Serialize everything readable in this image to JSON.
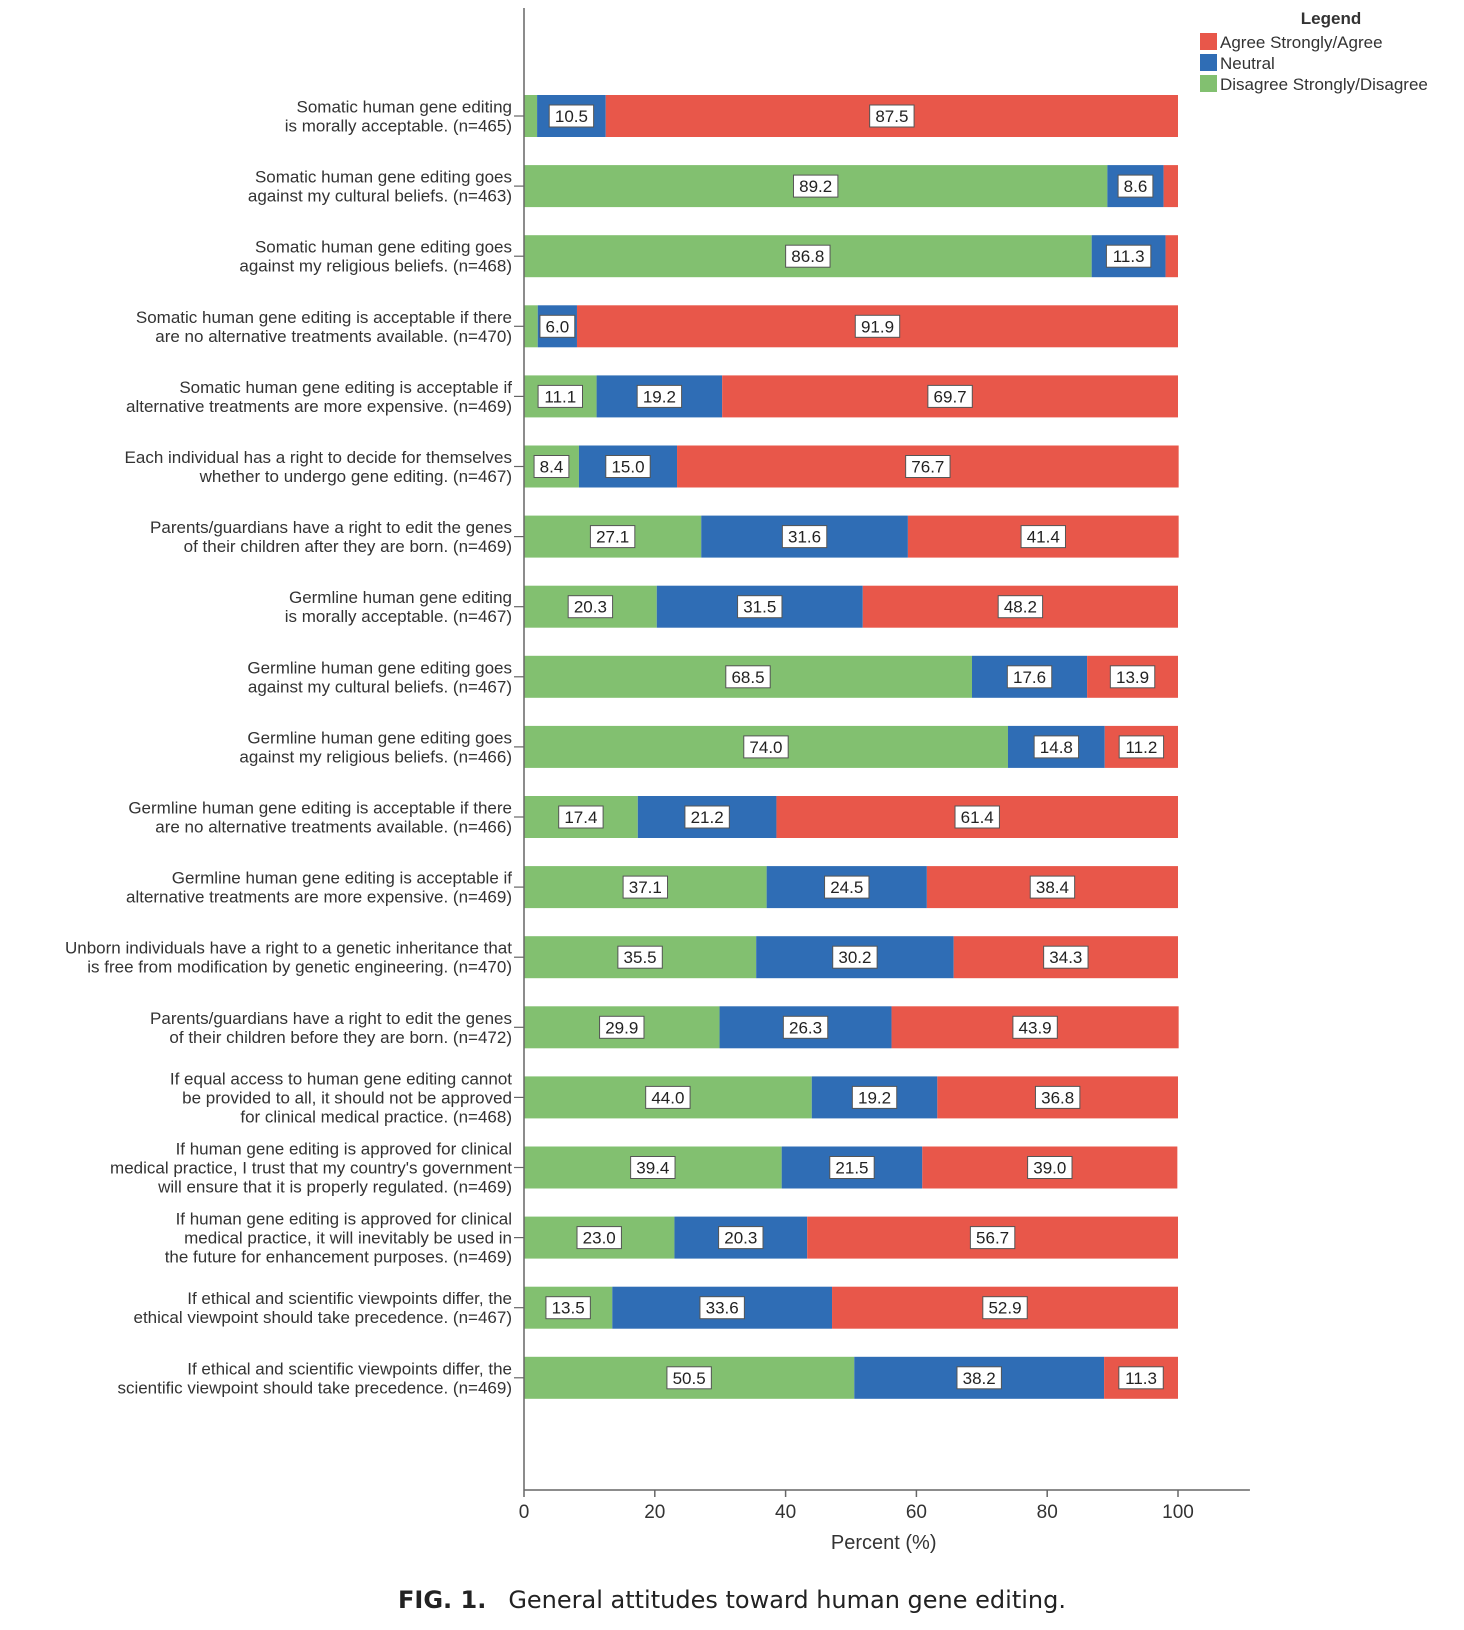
{
  "chart_data": {
    "type": "bar",
    "orientation": "horizontal",
    "stacked": true,
    "categories": [
      [
        "Somatic human gene editing",
        "is morally acceptable. (n=465)"
      ],
      [
        "Somatic human gene editing goes",
        "against my cultural beliefs. (n=463)"
      ],
      [
        "Somatic human gene editing goes",
        "against my religious beliefs. (n=468)"
      ],
      [
        "Somatic human gene editing is acceptable if there",
        "are no alternative treatments available. (n=470)"
      ],
      [
        "Somatic human gene editing is acceptable if",
        "alternative treatments are more expensive. (n=469)"
      ],
      [
        "Each individual has a right to decide for themselves",
        "whether to undergo gene editing. (n=467)"
      ],
      [
        "Parents/guardians have a right to edit the genes",
        "of their children after they are born. (n=469)"
      ],
      [
        "Germline human gene editing",
        "is morally acceptable. (n=467)"
      ],
      [
        "Germline human gene editing goes",
        "against my cultural beliefs. (n=467)"
      ],
      [
        "Germline human gene editing goes",
        "against my religious beliefs. (n=466)"
      ],
      [
        "Germline human gene editing is acceptable if there",
        "are no alternative treatments available. (n=466)"
      ],
      [
        "Germline human gene editing is acceptable if",
        "alternative treatments are more expensive. (n=469)"
      ],
      [
        "Unborn individuals have a right to a genetic inheritance that",
        "is free from modification by genetic engineering. (n=470)"
      ],
      [
        "Parents/guardians have a right to edit the genes",
        "of their children before they are born. (n=472)"
      ],
      [
        "If equal access to human gene editing cannot",
        "be provided to all, it should not be approved",
        "for clinical medical practice. (n=468)"
      ],
      [
        "If human gene editing is approved for clinical",
        "medical practice, I trust that my country's government",
        "will ensure that it is properly regulated. (n=469)"
      ],
      [
        "If human gene editing is approved for clinical",
        "medical practice, it will inevitably be used in",
        "the future for enhancement purposes. (n=469)"
      ],
      [
        "If ethical and scientific viewpoints differ, the",
        "ethical viewpoint should take precedence. (n=467)"
      ],
      [
        "If ethical and scientific viewpoints differ, the",
        "scientific viewpoint should take precedence. (n=469)"
      ]
    ],
    "series": [
      {
        "name": "Disagree Strongly/Disagree",
        "color": "#82c070",
        "values": [
          2.0,
          89.2,
          86.8,
          2.1,
          11.1,
          8.4,
          27.1,
          20.3,
          68.5,
          74.0,
          17.4,
          37.1,
          35.5,
          29.9,
          44.0,
          39.4,
          23.0,
          13.5,
          50.5
        ],
        "labels": [
          "",
          "89.2",
          "86.8",
          "",
          "11.1",
          "8.4",
          "27.1",
          "20.3",
          "68.5",
          "74.0",
          "17.4",
          "37.1",
          "35.5",
          "29.9",
          "44.0",
          "39.4",
          "23.0",
          "13.5",
          "50.5"
        ]
      },
      {
        "name": "Neutral",
        "color": "#2f6db5",
        "values": [
          10.5,
          8.6,
          11.3,
          6.0,
          19.2,
          15.0,
          31.6,
          31.5,
          17.6,
          14.8,
          21.2,
          24.5,
          30.2,
          26.3,
          19.2,
          21.5,
          20.3,
          33.6,
          38.2
        ],
        "labels": [
          "10.5",
          "8.6",
          "11.3",
          "6.0",
          "19.2",
          "15.0",
          "31.6",
          "31.5",
          "17.6",
          "14.8",
          "21.2",
          "24.5",
          "30.2",
          "26.3",
          "19.2",
          "21.5",
          "20.3",
          "33.6",
          "38.2"
        ]
      },
      {
        "name": "Agree Strongly/Agree",
        "color": "#e8574a",
        "values": [
          87.5,
          2.2,
          1.9,
          91.9,
          69.7,
          76.7,
          41.4,
          48.2,
          13.9,
          11.2,
          61.4,
          38.4,
          34.3,
          43.9,
          36.8,
          39.0,
          56.7,
          52.9,
          11.3
        ],
        "labels": [
          "87.5",
          "",
          "",
          "91.9",
          "69.7",
          "76.7",
          "41.4",
          "48.2",
          "13.9",
          "11.2",
          "61.4",
          "38.4",
          "34.3",
          "43.9",
          "36.8",
          "39.0",
          "56.7",
          "52.9",
          "11.3"
        ]
      }
    ],
    "xlabel": "Percent (%)",
    "xticks": [
      "0",
      "20",
      "40",
      "60",
      "80",
      "100"
    ],
    "xlim": [
      0,
      111
    ],
    "grid": false,
    "legend": {
      "title": "Legend",
      "placement": "top-right",
      "order": [
        "Agree Strongly/Agree",
        "Neutral",
        "Disagree Strongly/Disagree"
      ]
    }
  },
  "caption": {
    "label": "FIG. 1.",
    "text": "General attitudes toward human gene editing."
  }
}
